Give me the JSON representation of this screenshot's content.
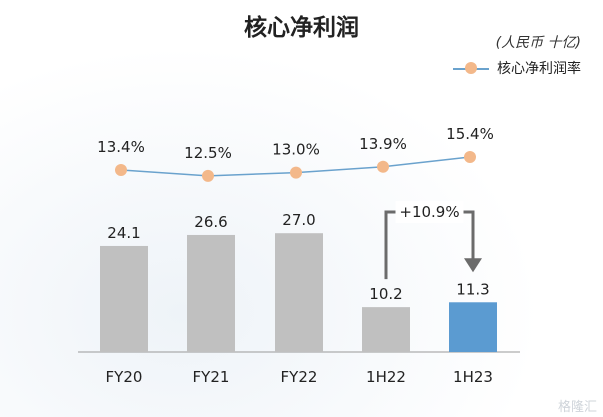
{
  "chart_data": {
    "type": "bar",
    "title": "核心净利润",
    "unit_label": "(人民币 十亿)",
    "categories": [
      "FY20",
      "FY21",
      "FY22",
      "1H22",
      "1H23"
    ],
    "series": [
      {
        "type": "bar",
        "values": [
          24.1,
          26.6,
          27.0,
          10.2,
          11.3
        ],
        "colors": [
          "#c0c0c0",
          "#c0c0c0",
          "#c0c0c0",
          "#c0c0c0",
          "#5b9bd1"
        ]
      },
      {
        "type": "line",
        "name": "核心净利润率",
        "values": [
          13.4,
          12.5,
          13.0,
          13.9,
          15.4
        ],
        "labels": [
          "13.4%",
          "12.5%",
          "13.0%",
          "13.9%",
          "15.4%"
        ],
        "line_color": "#6aa2cd",
        "marker_color": "#f3b88a"
      }
    ],
    "annotation": {
      "text": "+10.9%",
      "from": "1H22",
      "to": "1H23",
      "color": "#6b6b6b"
    },
    "grid": false,
    "legend_position": "top-right"
  },
  "watermark": "格隆汇"
}
